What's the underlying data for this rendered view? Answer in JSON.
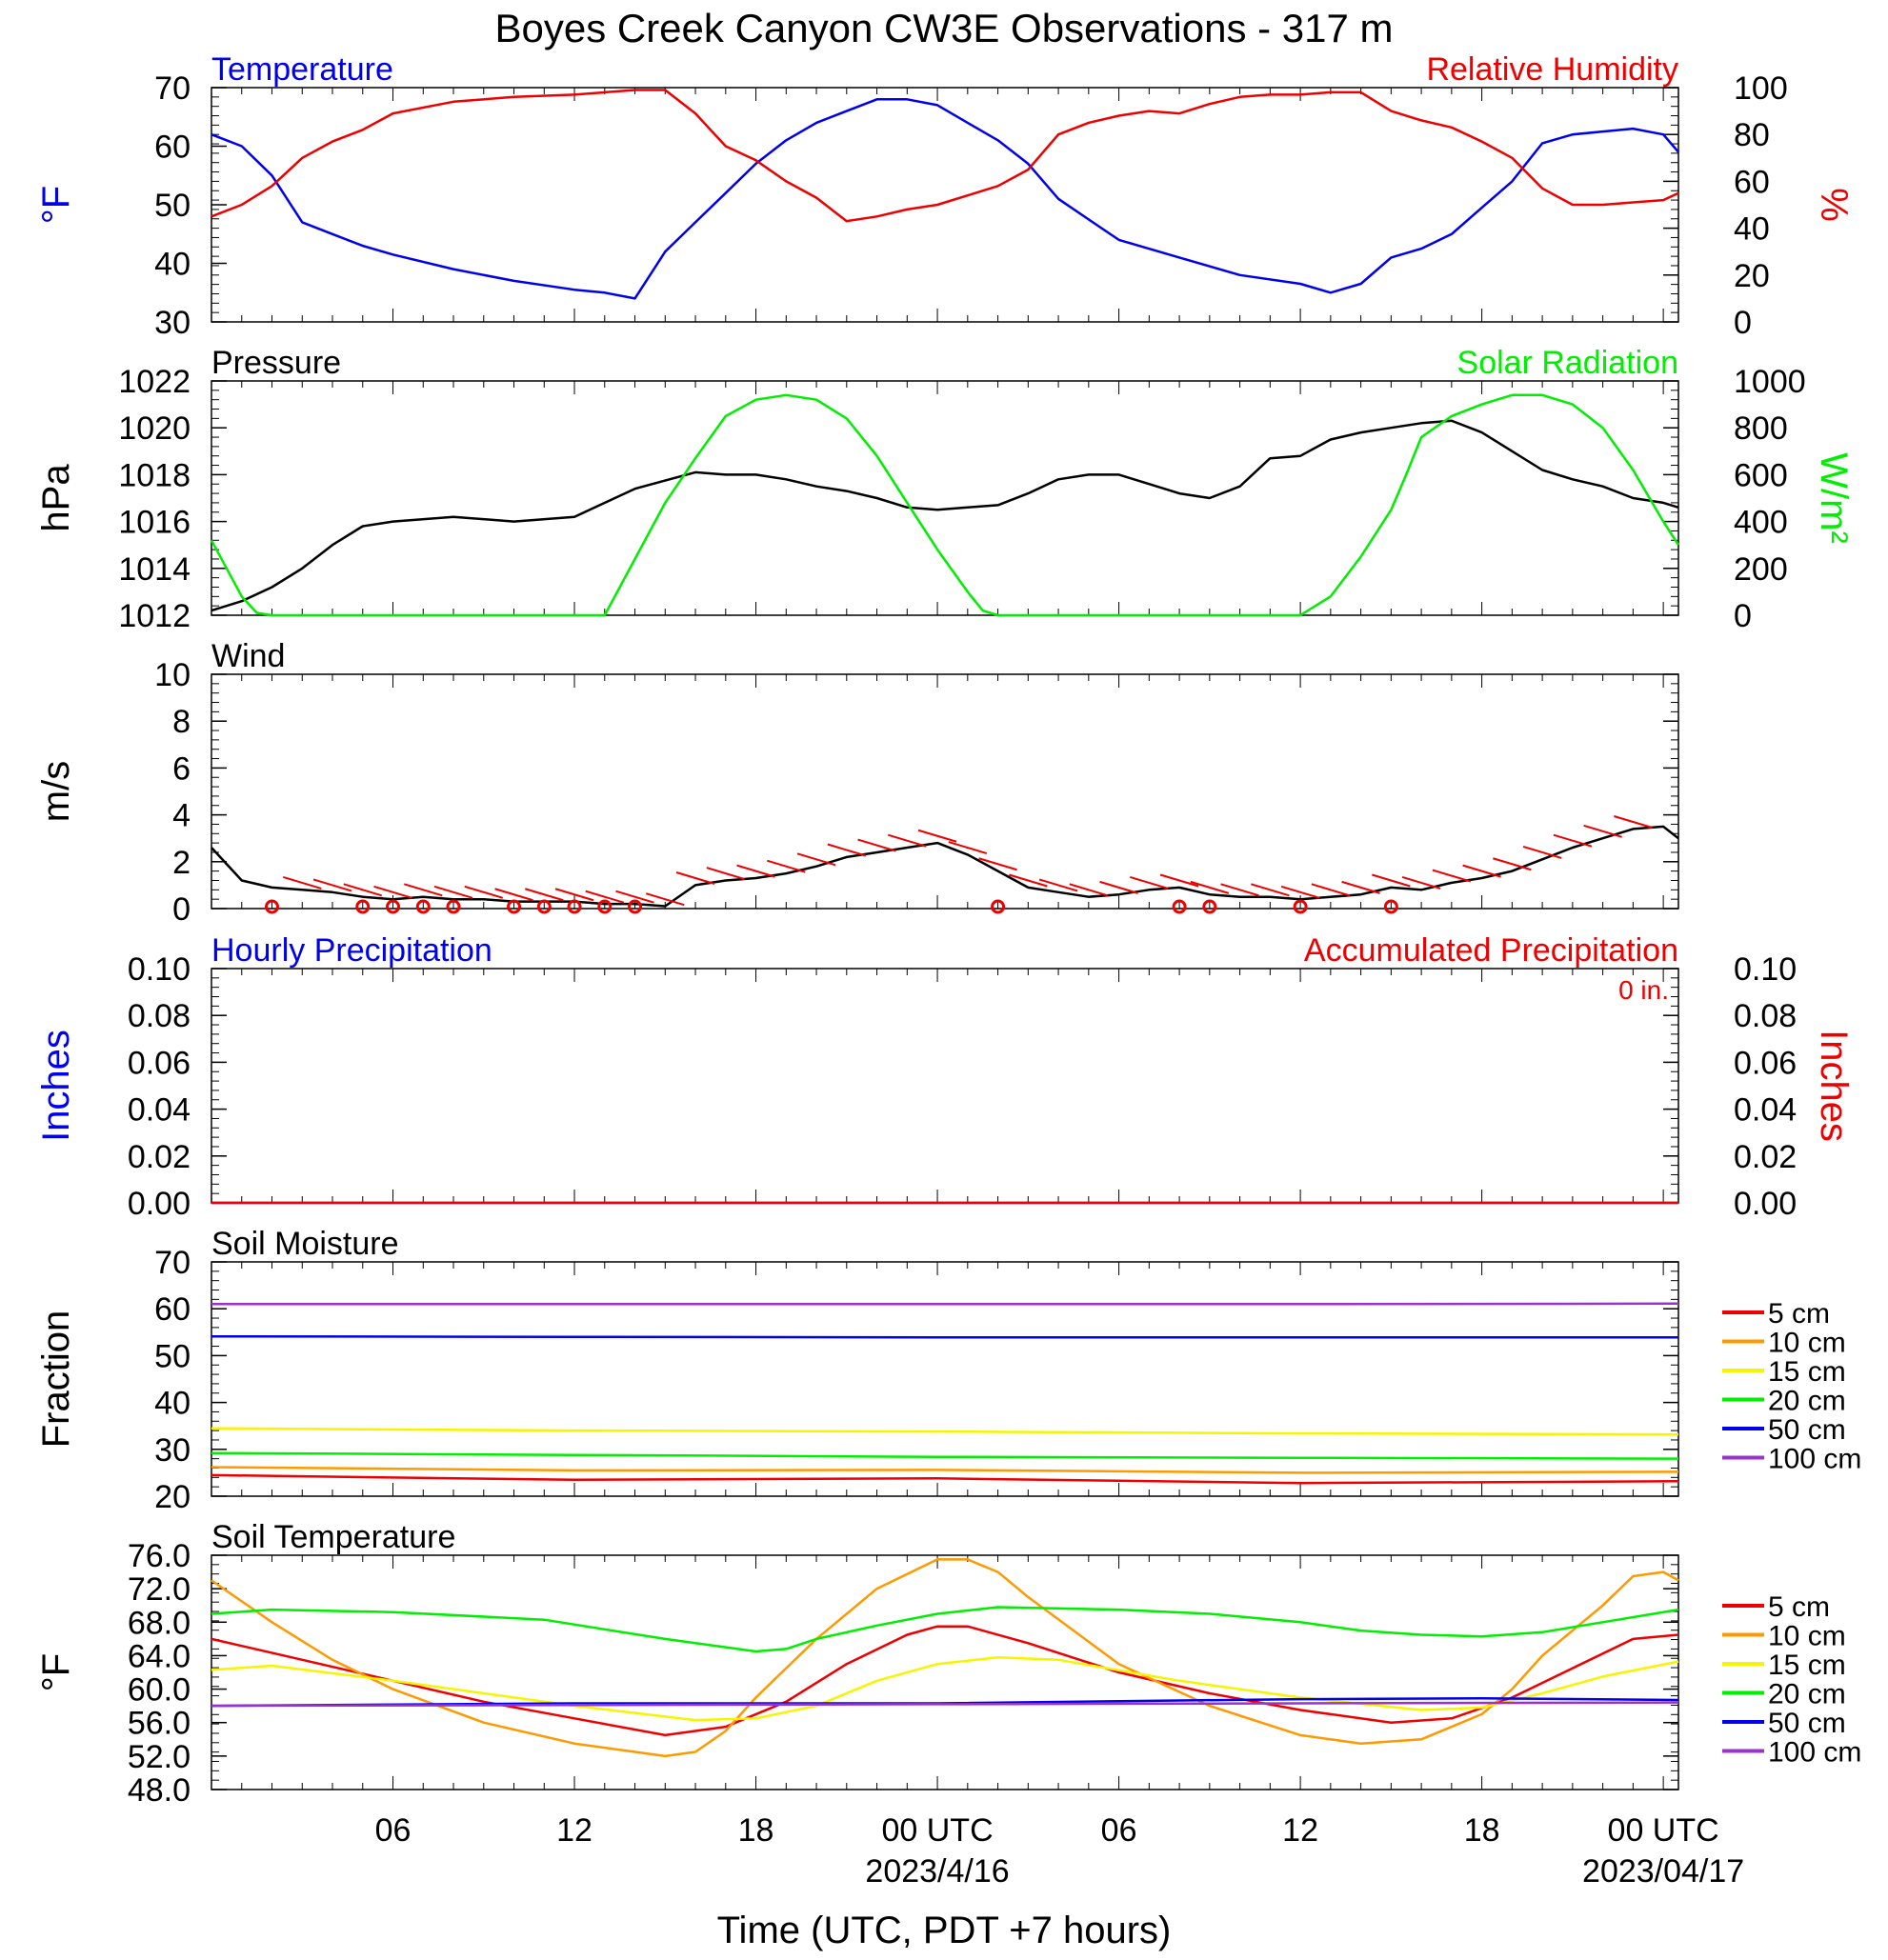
{
  "title": "Boyes Creek Canyon CW3E Observations - 317 m",
  "x_axis": {
    "label": "Time (UTC, PDT +7 hours)",
    "tick_labels": [
      "06",
      "12",
      "18",
      "00 UTC",
      "06",
      "12",
      "18",
      "00 UTC"
    ],
    "tick_hours": [
      6,
      12,
      18,
      24,
      30,
      36,
      42,
      48
    ],
    "date_labels": [
      {
        "text": "2023/4/16",
        "hour": 24
      },
      {
        "text": "2023/04/17",
        "hour": 48
      }
    ],
    "range_hours_since_2023-04-15T00Z": [
      0,
      48.5
    ]
  },
  "colors": {
    "blue": "#0000ee",
    "red": "#ee0000",
    "green": "#00ee00",
    "black": "#000000",
    "orange": "#ff9900",
    "yellow": "#f5f500",
    "purple": "#9933cc"
  },
  "chart_data": [
    {
      "id": "temperature-rh",
      "type": "line",
      "title_left": "Temperature",
      "title_right": "Relative Humidity",
      "ylabel_left": "°F",
      "ylabel_right": "%",
      "ylim_left": [
        30,
        70
      ],
      "ylim_right": [
        0,
        100
      ],
      "yticks_left": [
        30,
        40,
        50,
        60,
        70
      ],
      "yticks_right": [
        0,
        20,
        40,
        60,
        80,
        100
      ],
      "series": [
        {
          "name": "Temperature",
          "axis": "left",
          "color": "#0000ee",
          "x": [
            0,
            1,
            2,
            3,
            4,
            5,
            6,
            8,
            10,
            12,
            13,
            14,
            15,
            16,
            17,
            18,
            19,
            20,
            21,
            22,
            23,
            24,
            25,
            26,
            27,
            28,
            29,
            30,
            32,
            34,
            36,
            37,
            38,
            39,
            40,
            41,
            42,
            43,
            44,
            45,
            46,
            47,
            48,
            48.5
          ],
          "values": [
            62,
            60,
            55,
            47,
            45,
            43,
            41.5,
            39,
            37,
            35.5,
            35,
            34,
            42,
            47,
            52,
            57,
            61,
            64,
            66,
            68,
            68,
            67,
            64,
            61,
            57,
            51,
            47.5,
            44,
            41,
            38,
            36.5,
            35,
            36.5,
            41,
            42.5,
            45,
            49.5,
            54,
            60.5,
            62,
            62.5,
            63,
            62,
            59
          ]
        },
        {
          "name": "Relative Humidity",
          "axis": "right",
          "color": "#ee0000",
          "x": [
            0,
            1,
            2,
            3,
            4,
            5,
            6,
            8,
            10,
            12,
            14,
            15,
            16,
            17,
            18,
            19,
            20,
            21,
            22,
            23,
            24,
            25,
            26,
            27,
            28,
            29,
            30,
            31,
            32,
            33,
            34,
            35,
            36,
            37,
            38,
            39,
            40,
            41,
            42,
            43,
            44,
            45,
            46,
            47,
            48,
            48.5
          ],
          "values": [
            45,
            50,
            58,
            70,
            77,
            82,
            89,
            94,
            96,
            97,
            99,
            99,
            89,
            75,
            69,
            60,
            53,
            43,
            45,
            48,
            50,
            54,
            58,
            65,
            80,
            85,
            88,
            90,
            89,
            93,
            96,
            97,
            97,
            98,
            98,
            90,
            86,
            83,
            77,
            70,
            57,
            50,
            50,
            51,
            52,
            55
          ]
        }
      ]
    },
    {
      "id": "pressure-solar",
      "type": "line",
      "title_left": "Pressure",
      "title_right": "Solar Radiation",
      "ylabel_left": "hPa",
      "ylabel_right": "W/m²",
      "ylim_left": [
        1012,
        1022
      ],
      "ylim_right": [
        0,
        1000
      ],
      "yticks_left": [
        1012,
        1014,
        1016,
        1018,
        1020,
        1022
      ],
      "yticks_right": [
        0,
        200,
        400,
        600,
        800,
        1000
      ],
      "series": [
        {
          "name": "Pressure",
          "axis": "left",
          "color": "#000000",
          "x": [
            0,
            1,
            2,
            3,
            4,
            5,
            6,
            8,
            10,
            12,
            14,
            16,
            17,
            18,
            19,
            20,
            21,
            22,
            23,
            24,
            25,
            26,
            27,
            28,
            29,
            30,
            31,
            32,
            33,
            34,
            35,
            36,
            37,
            38,
            39,
            40,
            41,
            42,
            43,
            44,
            45,
            46,
            47,
            48,
            48.5
          ],
          "values": [
            1012.2,
            1012.6,
            1013.2,
            1014,
            1015,
            1015.8,
            1016,
            1016.2,
            1016,
            1016.2,
            1017.4,
            1018.1,
            1018,
            1018,
            1017.8,
            1017.5,
            1017.3,
            1017,
            1016.6,
            1016.5,
            1016.6,
            1016.7,
            1017.2,
            1017.8,
            1018,
            1018,
            1017.6,
            1017.2,
            1017,
            1017.5,
            1018.7,
            1018.8,
            1019.5,
            1019.8,
            1020,
            1020.2,
            1020.3,
            1019.8,
            1019,
            1018.2,
            1017.8,
            1017.5,
            1017,
            1016.8,
            1016.6
          ]
        },
        {
          "name": "Solar Radiation",
          "axis": "right",
          "color": "#00ee00",
          "x": [
            0,
            1,
            1.5,
            2,
            12,
            13,
            14,
            15,
            16,
            17,
            18,
            19,
            20,
            21,
            22,
            23,
            24,
            25,
            25.5,
            26,
            36,
            37,
            38,
            39,
            39.5,
            40,
            41,
            42,
            43,
            44,
            45,
            46,
            47,
            48,
            48.5
          ],
          "values": [
            320,
            80,
            10,
            0,
            0,
            0,
            240,
            480,
            670,
            850,
            920,
            940,
            920,
            840,
            680,
            480,
            280,
            100,
            20,
            0,
            0,
            80,
            250,
            450,
            600,
            760,
            850,
            900,
            940,
            940,
            900,
            800,
            620,
            400,
            300
          ]
        }
      ]
    },
    {
      "id": "wind",
      "type": "line",
      "title_left": "Wind",
      "ylabel_left": "m/s",
      "ylim_left": [
        0,
        10
      ],
      "yticks_left": [
        0,
        2,
        4,
        6,
        8,
        10
      ],
      "series": [
        {
          "name": "Wind",
          "axis": "left",
          "color": "#000000",
          "x": [
            0,
            1,
            2,
            3,
            4,
            5,
            6,
            7,
            8,
            9,
            10,
            11,
            12,
            13,
            14,
            15,
            16,
            17,
            18,
            19,
            20,
            21,
            22,
            23,
            24,
            25,
            26,
            27,
            28,
            29,
            30,
            31,
            32,
            33,
            34,
            35,
            36,
            37,
            38,
            39,
            40,
            41,
            42,
            43,
            44,
            45,
            46,
            47,
            48,
            48.5
          ],
          "values": [
            2.6,
            1.2,
            0.9,
            0.8,
            0.7,
            0.5,
            0.4,
            0.5,
            0.4,
            0.4,
            0.3,
            0.3,
            0.3,
            0.2,
            0.2,
            0.1,
            1,
            1.2,
            1.3,
            1.5,
            1.8,
            2.2,
            2.4,
            2.6,
            2.8,
            2.3,
            1.6,
            0.9,
            0.7,
            0.5,
            0.6,
            0.8,
            0.9,
            0.6,
            0.5,
            0.5,
            0.4,
            0.5,
            0.6,
            0.9,
            0.8,
            1.1,
            1.3,
            1.6,
            2.1,
            2.6,
            3,
            3.4,
            3.5,
            3
          ]
        }
      ],
      "wind_direction_bar_hours": [
        3,
        4,
        5,
        6,
        7,
        8,
        9,
        10,
        11,
        12,
        13,
        14,
        15,
        16,
        17,
        18,
        19,
        20,
        21,
        22,
        23,
        24,
        25,
        26,
        27,
        28,
        29,
        30,
        31,
        32,
        33,
        34,
        35,
        36,
        37,
        38,
        39,
        40,
        41,
        42,
        43,
        44,
        45,
        46,
        47
      ],
      "calm_marker_hours": [
        2,
        5,
        6,
        7,
        8,
        10,
        11,
        12,
        13,
        14,
        26,
        32,
        33,
        36,
        39
      ]
    },
    {
      "id": "precipitation",
      "type": "line",
      "title_left": "Hourly Precipitation",
      "title_right": "Accumulated Precipitation",
      "annotation": "0 in.",
      "ylabel_left": "Inches",
      "ylabel_right": "Inches",
      "ylim_left": [
        0,
        0.1
      ],
      "ylim_right": [
        0,
        0.1
      ],
      "yticks_left": [
        "0.00",
        "0.02",
        "0.04",
        "0.06",
        "0.08",
        "0.10"
      ],
      "yticks_right": [
        "0.00",
        "0.02",
        "0.04",
        "0.06",
        "0.08",
        "0.10"
      ],
      "series": [
        {
          "name": "Hourly Precipitation",
          "axis": "left",
          "color": "#0000ee",
          "x": [
            0,
            48.5
          ],
          "values": [
            0,
            0
          ]
        },
        {
          "name": "Accumulated Precipitation",
          "axis": "right",
          "color": "#ee0000",
          "x": [
            0,
            48.5
          ],
          "values": [
            0,
            0
          ]
        }
      ]
    },
    {
      "id": "soil-moisture",
      "type": "line",
      "title_left": "Soil Moisture",
      "ylabel_left": "Fraction",
      "ylim_left": [
        20,
        70
      ],
      "yticks_left": [
        20,
        30,
        40,
        50,
        60,
        70
      ],
      "series": [
        {
          "name": "5 cm",
          "axis": "left",
          "color": "#ee0000",
          "x": [
            0,
            12,
            24,
            36,
            48.5
          ],
          "values": [
            24.5,
            23.5,
            23.8,
            22.8,
            23.2
          ]
        },
        {
          "name": "10 cm",
          "axis": "left",
          "color": "#ff9900",
          "x": [
            0,
            12,
            24,
            36,
            48.5
          ],
          "values": [
            26.2,
            25.5,
            25.6,
            25,
            25.2
          ]
        },
        {
          "name": "15 cm",
          "axis": "left",
          "color": "#f5f500",
          "x": [
            0,
            12,
            24,
            36,
            48.5
          ],
          "values": [
            34.5,
            34,
            33.8,
            33.4,
            33.2
          ]
        },
        {
          "name": "20 cm",
          "axis": "left",
          "color": "#00ee00",
          "x": [
            0,
            12,
            24,
            36,
            48.5
          ],
          "values": [
            29.2,
            28.8,
            28.4,
            28.2,
            28
          ]
        },
        {
          "name": "50 cm",
          "axis": "left",
          "color": "#0000ee",
          "x": [
            0,
            12,
            24,
            36,
            48.5
          ],
          "values": [
            54.1,
            54,
            53.9,
            53.9,
            53.9
          ]
        },
        {
          "name": "100 cm",
          "axis": "left",
          "color": "#9933cc",
          "x": [
            0,
            12,
            24,
            36,
            48.5
          ],
          "values": [
            61,
            61,
            61,
            61,
            61.1
          ]
        }
      ]
    },
    {
      "id": "soil-temperature",
      "type": "line",
      "title_left": "Soil Temperature",
      "ylabel_left": "°F",
      "ylim_left": [
        48,
        76
      ],
      "yticks_left": [
        "48.0",
        "52.0",
        "56.0",
        "60.0",
        "64.0",
        "68.0",
        "72.0",
        "76.0"
      ],
      "series": [
        {
          "name": "5 cm",
          "axis": "left",
          "color": "#ee0000",
          "x": [
            0,
            3,
            6,
            9,
            12,
            15,
            17,
            19,
            21,
            23,
            24,
            25,
            27,
            30,
            33,
            36,
            39,
            41,
            43,
            45,
            47,
            48.5
          ],
          "values": [
            66,
            63.5,
            61,
            58.5,
            56.5,
            54.5,
            55.5,
            58.5,
            63,
            66.5,
            67.5,
            67.5,
            65.5,
            62,
            59.5,
            57.5,
            56,
            56.5,
            59,
            62.5,
            66,
            66.5
          ]
        },
        {
          "name": "10 cm",
          "axis": "left",
          "color": "#ff9900",
          "x": [
            0,
            2,
            4,
            6,
            9,
            12,
            15,
            16,
            17,
            18,
            20,
            22,
            24,
            25,
            26,
            27,
            30,
            33,
            36,
            38,
            40,
            42,
            43,
            44,
            46,
            47,
            48,
            48.5
          ],
          "values": [
            73,
            68,
            63.5,
            60,
            56,
            53.5,
            52,
            52.5,
            55,
            59,
            66,
            72,
            75.5,
            75.5,
            74,
            71,
            63,
            58,
            54.5,
            53.5,
            54,
            57,
            60,
            64,
            70,
            73.5,
            74,
            73
          ]
        },
        {
          "name": "15 cm",
          "axis": "left",
          "color": "#f5f500",
          "x": [
            0,
            2,
            6,
            12,
            16,
            18,
            20,
            22,
            24,
            26,
            28,
            32,
            36,
            40,
            42,
            44,
            46,
            48.5
          ],
          "values": [
            62.3,
            62.8,
            61,
            58,
            56.3,
            56.5,
            58,
            61,
            63,
            63.8,
            63.5,
            61,
            59,
            57.5,
            57.8,
            59.5,
            61.5,
            63.3
          ]
        },
        {
          "name": "20 cm",
          "axis": "left",
          "color": "#00ee00",
          "x": [
            0,
            2,
            6,
            11,
            15,
            17,
            18,
            19,
            20,
            22,
            24,
            26,
            30,
            33,
            36,
            38,
            40,
            42,
            44,
            46,
            48.5
          ],
          "values": [
            69,
            69.5,
            69.2,
            68.3,
            66,
            65,
            64.5,
            64.8,
            66,
            67.6,
            69,
            69.8,
            69.5,
            69,
            68,
            67,
            66.5,
            66.3,
            66.8,
            68,
            69.5
          ]
        },
        {
          "name": "50 cm",
          "axis": "left",
          "color": "#0000ee",
          "x": [
            0,
            12,
            24,
            36,
            42,
            48.5
          ],
          "values": [
            58,
            58.3,
            58.3,
            58.8,
            58.9,
            58.7
          ]
        },
        {
          "name": "100 cm",
          "axis": "left",
          "color": "#9933cc",
          "x": [
            0,
            12,
            24,
            36,
            48.5
          ],
          "values": [
            58,
            58.1,
            58.2,
            58.3,
            58.4
          ]
        }
      ]
    }
  ],
  "legend_soil_moisture": [
    "5 cm",
    "10 cm",
    "15 cm",
    "20 cm",
    "50 cm",
    "100 cm"
  ],
  "legend_soil_temperature": [
    "5 cm",
    "10 cm",
    "15 cm",
    "20 cm",
    "50 cm",
    "100 cm"
  ]
}
